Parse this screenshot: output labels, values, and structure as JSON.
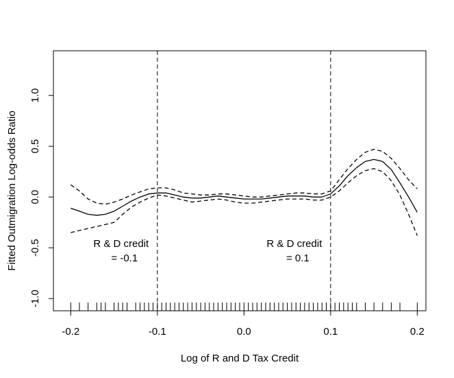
{
  "chart_data": {
    "type": "line",
    "title": "",
    "xlabel": "Log of R and D Tax Credit",
    "ylabel": "Fitted Outmigration Log-odds Ratio",
    "xlim": [
      -0.22,
      0.21
    ],
    "ylim": [
      -1.12,
      1.44
    ],
    "x_ticks": [
      -0.2,
      -0.1,
      0.0,
      0.1,
      0.2
    ],
    "x_tick_labels": [
      "-0.2",
      "-0.1",
      "0.0",
      "0.1",
      "0.2"
    ],
    "y_ticks": [
      -1.0,
      -0.5,
      0.0,
      0.5,
      1.0
    ],
    "y_tick_labels": [
      "-1.0",
      "-0.5",
      "0.0",
      "0.5",
      "1.0"
    ],
    "grid": false,
    "series": [
      {
        "role": "fit",
        "style": "solid",
        "x": [
          -0.2,
          -0.19,
          -0.18,
          -0.17,
          -0.16,
          -0.15,
          -0.14,
          -0.13,
          -0.12,
          -0.11,
          -0.1,
          -0.09,
          -0.08,
          -0.07,
          -0.06,
          -0.05,
          -0.04,
          -0.03,
          -0.02,
          -0.01,
          0.0,
          0.01,
          0.02,
          0.03,
          0.04,
          0.05,
          0.06,
          0.07,
          0.08,
          0.09,
          0.1,
          0.11,
          0.12,
          0.13,
          0.14,
          0.15,
          0.16,
          0.17,
          0.18,
          0.19,
          0.2
        ],
        "y": [
          -0.11,
          -0.14,
          -0.17,
          -0.18,
          -0.17,
          -0.14,
          -0.09,
          -0.04,
          0.0,
          0.03,
          0.04,
          0.04,
          0.02,
          0.0,
          -0.01,
          -0.01,
          0.0,
          0.01,
          0.0,
          -0.01,
          -0.02,
          -0.02,
          -0.02,
          -0.01,
          0.0,
          0.01,
          0.01,
          0.01,
          0.0,
          0.0,
          0.03,
          0.11,
          0.21,
          0.29,
          0.35,
          0.37,
          0.35,
          0.27,
          0.14,
          0.0,
          -0.15
        ]
      },
      {
        "role": "upper-band",
        "style": "dashed",
        "x": [
          -0.2,
          -0.19,
          -0.18,
          -0.17,
          -0.16,
          -0.15,
          -0.14,
          -0.13,
          -0.12,
          -0.11,
          -0.1,
          -0.09,
          -0.08,
          -0.07,
          -0.06,
          -0.05,
          -0.04,
          -0.03,
          -0.02,
          -0.01,
          0.0,
          0.01,
          0.02,
          0.03,
          0.04,
          0.05,
          0.06,
          0.07,
          0.08,
          0.09,
          0.1,
          0.11,
          0.12,
          0.13,
          0.14,
          0.15,
          0.16,
          0.17,
          0.18,
          0.19,
          0.2
        ],
        "y": [
          0.12,
          0.06,
          -0.02,
          -0.06,
          -0.07,
          -0.05,
          -0.02,
          0.02,
          0.05,
          0.08,
          0.09,
          0.09,
          0.07,
          0.04,
          0.03,
          0.02,
          0.02,
          0.03,
          0.03,
          0.02,
          0.01,
          0.0,
          0.0,
          0.01,
          0.02,
          0.03,
          0.04,
          0.04,
          0.03,
          0.03,
          0.06,
          0.17,
          0.28,
          0.37,
          0.44,
          0.47,
          0.45,
          0.38,
          0.28,
          0.17,
          0.08
        ]
      },
      {
        "role": "lower-band",
        "style": "dashed",
        "x": [
          -0.2,
          -0.19,
          -0.18,
          -0.17,
          -0.16,
          -0.15,
          -0.14,
          -0.13,
          -0.12,
          -0.11,
          -0.1,
          -0.09,
          -0.08,
          -0.07,
          -0.06,
          -0.05,
          -0.04,
          -0.03,
          -0.02,
          -0.01,
          0.0,
          0.01,
          0.02,
          0.03,
          0.04,
          0.05,
          0.06,
          0.07,
          0.08,
          0.09,
          0.1,
          0.11,
          0.12,
          0.13,
          0.14,
          0.15,
          0.16,
          0.17,
          0.18,
          0.19,
          0.2
        ],
        "y": [
          -0.35,
          -0.33,
          -0.31,
          -0.29,
          -0.27,
          -0.25,
          -0.17,
          -0.1,
          -0.05,
          -0.01,
          0.02,
          0.01,
          -0.01,
          -0.03,
          -0.05,
          -0.04,
          -0.03,
          -0.02,
          -0.03,
          -0.05,
          -0.06,
          -0.06,
          -0.05,
          -0.04,
          -0.03,
          -0.02,
          -0.02,
          -0.02,
          -0.03,
          -0.03,
          0.0,
          0.06,
          0.14,
          0.21,
          0.26,
          0.28,
          0.25,
          0.16,
          0.02,
          -0.17,
          -0.38
        ]
      }
    ],
    "reference_lines": [
      {
        "x": -0.1,
        "style": "dashed",
        "label_lines": [
          "R & D credit",
          "= -0.1"
        ]
      },
      {
        "x": 0.1,
        "style": "dashed",
        "label_lines": [
          "R & D credit",
          "= 0.1"
        ]
      }
    ],
    "rug_x": [
      -0.2,
      -0.19,
      -0.18,
      -0.17,
      -0.165,
      -0.16,
      -0.15,
      -0.145,
      -0.14,
      -0.135,
      -0.125,
      -0.12,
      -0.115,
      -0.11,
      -0.105,
      -0.1,
      -0.095,
      -0.09,
      -0.085,
      -0.08,
      -0.075,
      -0.07,
      -0.065,
      -0.06,
      -0.055,
      -0.05,
      -0.045,
      -0.04,
      -0.035,
      -0.03,
      -0.025,
      -0.02,
      -0.015,
      -0.01,
      -0.005,
      0.0,
      0.005,
      0.01,
      0.015,
      0.02,
      0.025,
      0.03,
      0.035,
      0.04,
      0.045,
      0.05,
      0.055,
      0.06,
      0.065,
      0.07,
      0.075,
      0.08,
      0.085,
      0.09,
      0.095,
      0.1,
      0.105,
      0.11,
      0.115,
      0.12,
      0.125,
      0.13,
      0.14,
      0.15,
      0.16,
      0.17,
      0.18,
      0.2
    ]
  }
}
